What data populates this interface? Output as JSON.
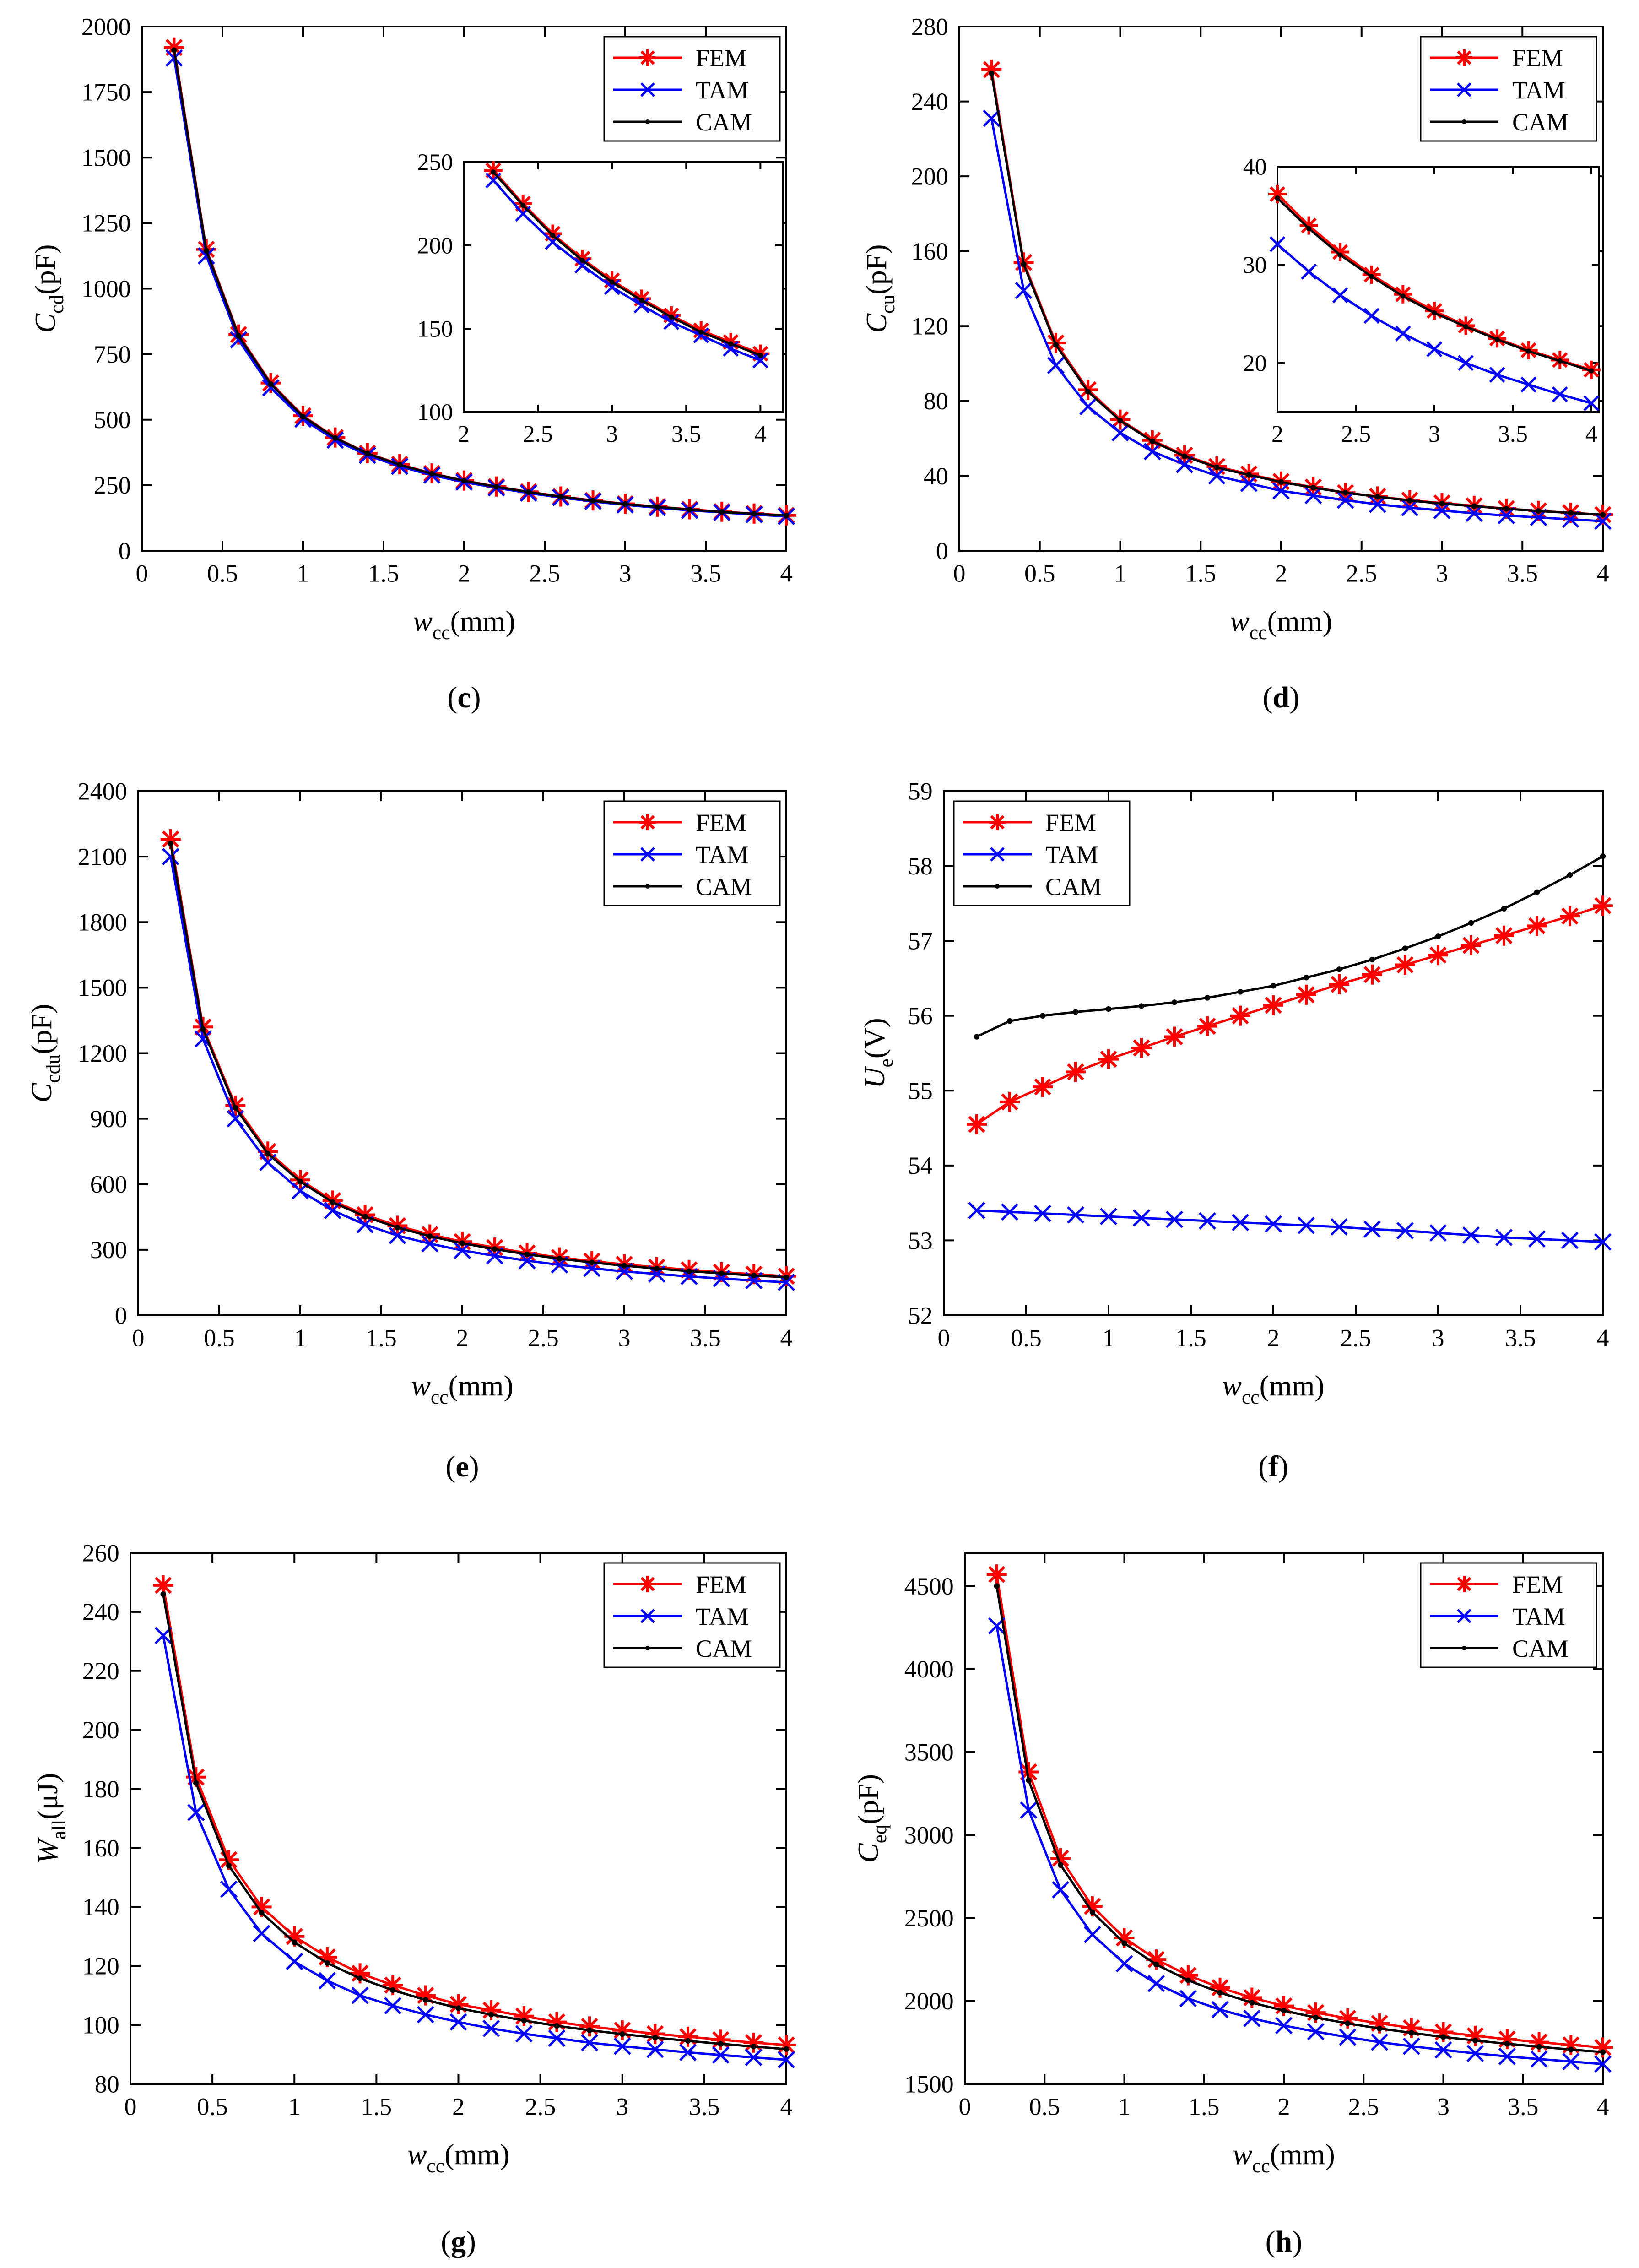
{
  "legend_labels": {
    "fem": "FEM",
    "tam": "TAM",
    "cam": "CAM"
  },
  "colors": {
    "fem": "#ff0000",
    "tam": "#0000ff",
    "cam": "#000000",
    "axis": "#000000"
  },
  "chart_data": [
    {
      "id": "c",
      "type": "line",
      "caption": "c",
      "ylabel": {
        "base": "C",
        "sub": "cd",
        "unit": "(pF)"
      },
      "xlabel": {
        "base": "w",
        "sub": "cc",
        "unit": "(mm)"
      },
      "xlim": [
        0,
        4
      ],
      "ylim": [
        0,
        2000
      ],
      "xticks": [
        0,
        0.5,
        1,
        1.5,
        2,
        2.5,
        3,
        3.5,
        4
      ],
      "xtick_labels": [
        "0",
        "0.5",
        "1",
        "1.5",
        "2",
        "2.5",
        "3",
        "3.5",
        "4"
      ],
      "yticks": [
        0,
        250,
        500,
        750,
        1000,
        1250,
        1500,
        1750,
        2000
      ],
      "ytick_labels": [
        "0",
        "250",
        "500",
        "750",
        "1000",
        "1250",
        "1500",
        "1750",
        "2000"
      ],
      "legend": "top-right",
      "x": [
        0.2,
        0.4,
        0.6,
        0.8,
        1.0,
        1.2,
        1.4,
        1.6,
        1.8,
        2.0,
        2.2,
        2.4,
        2.6,
        2.8,
        3.0,
        3.2,
        3.4,
        3.6,
        3.8,
        4.0
      ],
      "series": [
        {
          "name": "FEM",
          "key": "fem",
          "values": [
            1920,
            1150,
            825,
            640,
            515,
            432,
            372,
            330,
            295,
            268,
            245,
            225,
            207,
            192,
            179,
            168,
            158,
            149,
            142,
            135
          ]
        },
        {
          "name": "TAM",
          "key": "tam",
          "values": [
            1880,
            1125,
            805,
            622,
            502,
            422,
            364,
            322,
            288,
            262,
            240,
            220,
            203,
            188,
            175,
            164,
            154,
            146,
            138,
            131
          ]
        },
        {
          "name": "CAM",
          "key": "cam",
          "values": [
            1910,
            1145,
            820,
            636,
            512,
            430,
            371,
            328,
            294,
            267,
            244,
            224,
            206,
            191,
            178,
            167,
            157,
            148,
            141,
            134
          ]
        }
      ],
      "inset": {
        "xlim": [
          2,
          4.15
        ],
        "ylim": [
          100,
          250
        ],
        "xticks": [
          2,
          2.5,
          3,
          3.5,
          4
        ],
        "xtick_labels": [
          "2",
          "2.5",
          "3",
          "3.5",
          "4"
        ],
        "yticks": [
          100,
          150,
          200,
          250
        ],
        "ytick_labels": [
          "100",
          "150",
          "200",
          "250"
        ],
        "x": [
          2.2,
          2.4,
          2.6,
          2.8,
          3.0,
          3.2,
          3.4,
          3.6,
          3.8,
          4.0
        ],
        "series": [
          {
            "key": "fem",
            "values": [
              245,
              225,
              207,
              192,
              179,
              168,
              158,
              149,
              142,
              135
            ]
          },
          {
            "key": "tam",
            "values": [
              239,
              219,
              202,
              188,
              175,
              164,
              154,
              146,
              138,
              131
            ]
          },
          {
            "key": "cam",
            "values": [
              244,
              224,
              206,
              191,
              178,
              167,
              157,
              148,
              141,
              134
            ]
          }
        ]
      }
    },
    {
      "id": "d",
      "type": "line",
      "caption": "d",
      "ylabel": {
        "base": "C",
        "sub": "cu",
        "unit": "(pF)"
      },
      "xlabel": {
        "base": "w",
        "sub": "cc",
        "unit": "(mm)"
      },
      "xlim": [
        0,
        4
      ],
      "ylim": [
        0,
        280
      ],
      "xticks": [
        0,
        0.5,
        1,
        1.5,
        2,
        2.5,
        3,
        3.5,
        4
      ],
      "xtick_labels": [
        "0",
        "0.5",
        "1",
        "1.5",
        "2",
        "2.5",
        "3",
        "3.5",
        "4"
      ],
      "yticks": [
        0,
        40,
        80,
        120,
        160,
        200,
        240,
        280
      ],
      "ytick_labels": [
        "0",
        "40",
        "80",
        "120",
        "160",
        "200",
        "240",
        "280"
      ],
      "legend": "top-right",
      "x": [
        0.2,
        0.4,
        0.6,
        0.8,
        1.0,
        1.2,
        1.4,
        1.6,
        1.8,
        2.0,
        2.2,
        2.4,
        2.6,
        2.8,
        3.0,
        3.2,
        3.4,
        3.6,
        3.8,
        4.0
      ],
      "series": [
        {
          "name": "FEM",
          "key": "fem",
          "values": [
            257,
            154,
            111,
            86,
            70,
            59,
            51,
            45,
            41,
            37,
            34,
            31,
            29,
            27,
            25.5,
            24,
            22.5,
            21.3,
            20.3,
            19.3
          ]
        },
        {
          "name": "TAM",
          "key": "tam",
          "values": [
            231,
            139,
            99,
            77,
            63,
            53,
            46,
            40,
            36,
            32,
            29.5,
            27,
            24.8,
            23,
            21.5,
            20,
            18.8,
            17.8,
            16.8,
            15.8
          ]
        },
        {
          "name": "CAM",
          "key": "cam",
          "values": [
            255,
            153,
            110,
            85,
            69.5,
            58.5,
            50.5,
            44.5,
            40.5,
            36.7,
            33.7,
            31,
            28.8,
            26.8,
            25.2,
            23.8,
            22.4,
            21.2,
            20.2,
            19.2
          ]
        }
      ],
      "inset": {
        "xlim": [
          2,
          4.05
        ],
        "ylim": [
          15,
          40
        ],
        "xticks": [
          2,
          2.5,
          3,
          3.5,
          4
        ],
        "xtick_labels": [
          "2",
          "2.5",
          "3",
          "3.5",
          "4"
        ],
        "yticks": [
          20,
          30,
          40
        ],
        "ytick_labels": [
          "20",
          "30",
          "40"
        ],
        "x": [
          2.0,
          2.2,
          2.4,
          2.6,
          2.8,
          3.0,
          3.2,
          3.4,
          3.6,
          3.8,
          4.0
        ],
        "series": [
          {
            "key": "fem",
            "values": [
              37.2,
              34,
              31.3,
              29,
              27,
              25.3,
              23.8,
              22.5,
              21.3,
              20.3,
              19.3
            ]
          },
          {
            "key": "tam",
            "values": [
              32.1,
              29.3,
              26.9,
              24.8,
              23,
              21.4,
              20,
              18.8,
              17.8,
              16.8,
              15.9
            ]
          },
          {
            "key": "cam",
            "values": [
              36.8,
              33.7,
              31,
              28.8,
              26.8,
              25.1,
              23.7,
              22.4,
              21.2,
              20.2,
              19.2
            ]
          }
        ]
      }
    },
    {
      "id": "e",
      "type": "line",
      "caption": "e",
      "ylabel": {
        "base": "C",
        "sub": "cdu",
        "unit": "(pF)"
      },
      "xlabel": {
        "base": "w",
        "sub": "cc",
        "unit": "(mm)"
      },
      "xlim": [
        0,
        4
      ],
      "ylim": [
        0,
        2400
      ],
      "xticks": [
        0,
        0.5,
        1,
        1.5,
        2,
        2.5,
        3,
        3.5,
        4
      ],
      "xtick_labels": [
        "0",
        "0.5",
        "1",
        "1.5",
        "2",
        "2.5",
        "3",
        "3.5",
        "4"
      ],
      "yticks": [
        0,
        300,
        600,
        900,
        1200,
        1500,
        1800,
        2100,
        2400
      ],
      "ytick_labels": [
        "0",
        "300",
        "600",
        "900",
        "1200",
        "1500",
        "1800",
        "2100",
        "2400"
      ],
      "legend": "top-right",
      "x": [
        0.2,
        0.4,
        0.6,
        0.8,
        1.0,
        1.2,
        1.4,
        1.6,
        1.8,
        2.0,
        2.2,
        2.4,
        2.6,
        2.8,
        3.0,
        3.2,
        3.4,
        3.6,
        3.8,
        4.0
      ],
      "series": [
        {
          "name": "FEM",
          "key": "fem",
          "values": [
            2180,
            1320,
            960,
            750,
            620,
            525,
            460,
            410,
            370,
            337,
            310,
            285,
            265,
            248,
            233,
            220,
            208,
            197,
            188,
            179
          ]
        },
        {
          "name": "TAM",
          "key": "tam",
          "values": [
            2100,
            1265,
            900,
            700,
            570,
            480,
            415,
            365,
            328,
            297,
            272,
            250,
            231,
            215,
            201,
            189,
            178,
            168,
            159,
            151
          ]
        },
        {
          "name": "CAM",
          "key": "cam",
          "values": [
            2160,
            1310,
            950,
            740,
            612,
            518,
            452,
            402,
            362,
            330,
            303,
            279,
            259,
            242,
            227,
            214,
            202,
            192,
            182,
            174
          ]
        }
      ]
    },
    {
      "id": "f",
      "type": "line",
      "caption": "f",
      "ylabel": {
        "base": "U",
        "sub": "e",
        "unit": "(V)"
      },
      "xlabel": {
        "base": "w",
        "sub": "cc",
        "unit": "(mm)"
      },
      "xlim": [
        0,
        4
      ],
      "ylim": [
        52,
        59
      ],
      "xticks": [
        0,
        0.5,
        1,
        1.5,
        2,
        2.5,
        3,
        3.5,
        4
      ],
      "xtick_labels": [
        "0",
        "0.5",
        "1",
        "1.5",
        "2",
        "2.5",
        "3",
        "3.5",
        "4"
      ],
      "yticks": [
        52,
        53,
        54,
        55,
        56,
        57,
        58,
        59
      ],
      "ytick_labels": [
        "52",
        "53",
        "54",
        "55",
        "56",
        "57",
        "58",
        "59"
      ],
      "legend": "top-left",
      "x": [
        0.2,
        0.4,
        0.6,
        0.8,
        1.0,
        1.2,
        1.4,
        1.6,
        1.8,
        2.0,
        2.2,
        2.4,
        2.6,
        2.8,
        3.0,
        3.2,
        3.4,
        3.6,
        3.8,
        4.0
      ],
      "series": [
        {
          "name": "FEM",
          "key": "fem",
          "values": [
            54.55,
            54.85,
            55.05,
            55.25,
            55.42,
            55.57,
            55.72,
            55.86,
            56.0,
            56.14,
            56.28,
            56.42,
            56.55,
            56.68,
            56.81,
            56.94,
            57.07,
            57.2,
            57.33,
            57.47
          ]
        },
        {
          "name": "TAM",
          "key": "tam",
          "values": [
            53.4,
            53.38,
            53.36,
            53.34,
            53.32,
            53.3,
            53.28,
            53.26,
            53.24,
            53.22,
            53.2,
            53.18,
            53.15,
            53.13,
            53.1,
            53.07,
            53.04,
            53.02,
            53.0,
            52.98
          ]
        },
        {
          "name": "CAM",
          "key": "cam",
          "values": [
            55.72,
            55.93,
            56.0,
            56.05,
            56.09,
            56.13,
            56.18,
            56.24,
            56.32,
            56.4,
            56.51,
            56.62,
            56.75,
            56.9,
            57.06,
            57.24,
            57.43,
            57.65,
            57.88,
            58.13
          ]
        }
      ]
    },
    {
      "id": "g",
      "type": "line",
      "caption": "g",
      "ylabel": {
        "base": "W",
        "sub": "all",
        "unit": "(μJ)"
      },
      "xlabel": {
        "base": "w",
        "sub": "cc",
        "unit": "(mm)"
      },
      "xlim": [
        0,
        4
      ],
      "ylim": [
        80,
        260
      ],
      "xticks": [
        0,
        0.5,
        1,
        1.5,
        2,
        2.5,
        3,
        3.5,
        4
      ],
      "xtick_labels": [
        "0",
        "0.5",
        "1",
        "1.5",
        "2",
        "2.5",
        "3",
        "3.5",
        "4"
      ],
      "yticks": [
        80,
        100,
        120,
        140,
        160,
        180,
        200,
        220,
        240,
        260
      ],
      "ytick_labels": [
        "80",
        "100",
        "120",
        "140",
        "160",
        "180",
        "200",
        "220",
        "240",
        "260"
      ],
      "legend": "top-right",
      "x": [
        0.2,
        0.4,
        0.6,
        0.8,
        1.0,
        1.2,
        1.4,
        1.6,
        1.8,
        2.0,
        2.2,
        2.4,
        2.6,
        2.8,
        3.0,
        3.2,
        3.4,
        3.6,
        3.8,
        4.0
      ],
      "series": [
        {
          "name": "FEM",
          "key": "fem",
          "values": [
            249,
            184,
            156,
            140,
            130,
            123,
            117.5,
            113.5,
            110,
            107,
            105,
            103,
            101,
            99.5,
            98.2,
            97,
            96,
            95,
            94,
            93.2
          ]
        },
        {
          "name": "TAM",
          "key": "tam",
          "values": [
            232,
            172,
            146,
            131,
            121.5,
            115,
            110,
            106.5,
            103.5,
            101,
            98.8,
            97,
            95.5,
            94,
            92.8,
            91.7,
            90.7,
            89.8,
            89,
            88.2
          ]
        },
        {
          "name": "CAM",
          "key": "cam",
          "values": [
            246,
            182,
            154,
            138,
            128,
            121,
            115.8,
            111.8,
            108.5,
            105.7,
            103.5,
            101.5,
            99.7,
            98.2,
            96.9,
            95.7,
            94.6,
            93.6,
            92.7,
            91.8
          ]
        }
      ]
    },
    {
      "id": "h",
      "type": "line",
      "caption": "h",
      "ylabel": {
        "base": "C",
        "sub": "eq",
        "unit": "(pF)"
      },
      "xlabel": {
        "base": "w",
        "sub": "cc",
        "unit": "(mm)"
      },
      "xlim": [
        0,
        4
      ],
      "ylim": [
        1500,
        4700
      ],
      "xticks": [
        0,
        0.5,
        1,
        1.5,
        2,
        2.5,
        3,
        3.5,
        4
      ],
      "xtick_labels": [
        "0",
        "0.5",
        "1",
        "1.5",
        "2",
        "2.5",
        "3",
        "3.5",
        "4"
      ],
      "yticks": [
        1500,
        2000,
        2500,
        3000,
        3500,
        4000,
        4500
      ],
      "ytick_labels": [
        "1500",
        "2000",
        "2500",
        "3000",
        "3500",
        "4000",
        "4500"
      ],
      "legend": "top-right",
      "x": [
        0.2,
        0.4,
        0.6,
        0.8,
        1.0,
        1.2,
        1.4,
        1.6,
        1.8,
        2.0,
        2.2,
        2.4,
        2.6,
        2.8,
        3.0,
        3.2,
        3.4,
        3.6,
        3.8,
        4.0
      ],
      "series": [
        {
          "name": "FEM",
          "key": "fem",
          "values": [
            4570,
            3380,
            2860,
            2570,
            2380,
            2250,
            2155,
            2080,
            2020,
            1970,
            1930,
            1895,
            1865,
            1838,
            1813,
            1790,
            1770,
            1752,
            1735,
            1720
          ]
        },
        {
          "name": "TAM",
          "key": "tam",
          "values": [
            4260,
            3150,
            2670,
            2400,
            2225,
            2105,
            2015,
            1948,
            1895,
            1852,
            1815,
            1782,
            1752,
            1727,
            1705,
            1684,
            1666,
            1650,
            1635,
            1620
          ]
        },
        {
          "name": "CAM",
          "key": "cam",
          "values": [
            4500,
            3330,
            2820,
            2535,
            2348,
            2220,
            2125,
            2050,
            1990,
            1942,
            1900,
            1865,
            1834,
            1808,
            1783,
            1762,
            1742,
            1724,
            1707,
            1692
          ]
        }
      ]
    }
  ]
}
